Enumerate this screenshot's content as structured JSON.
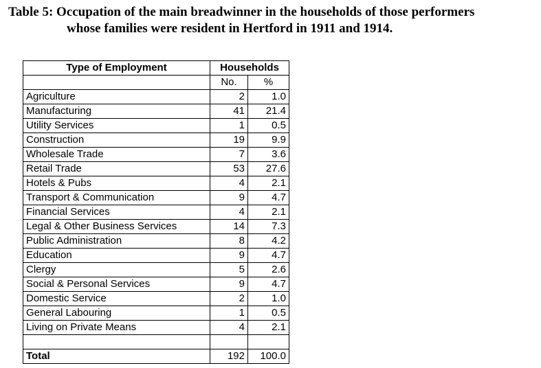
{
  "caption": {
    "line1": "Table 5:  Occupation of the main breadwinner  in the households  of those performers",
    "line2": "whose families were resident in Hertford in 1911 and 1914."
  },
  "table": {
    "header": {
      "type": "Type of Employment",
      "households": "Households",
      "no": "No.",
      "pct": "%"
    },
    "rows": [
      {
        "type": "Agriculture",
        "no": "2",
        "pct": "1.0"
      },
      {
        "type": "Manufacturing",
        "no": "41",
        "pct": "21.4"
      },
      {
        "type": "Utility Services",
        "no": "1",
        "pct": "0.5"
      },
      {
        "type": "Construction",
        "no": "19",
        "pct": "9.9"
      },
      {
        "type": "Wholesale  Trade",
        "no": "7",
        "pct": "3.6"
      },
      {
        "type": "Retail Trade",
        "no": "53",
        "pct": "27.6"
      },
      {
        "type": "Hotels & Pubs",
        "no": "4",
        "pct": "2.1"
      },
      {
        "type": "Transport  & Communication",
        "no": "9",
        "pct": "4.7"
      },
      {
        "type": "Financial Services",
        "no": "4",
        "pct": "2.1"
      },
      {
        "type": "Legal & Other Business Services",
        "no": "14",
        "pct": "7.3"
      },
      {
        "type": "Public Administration",
        "no": "8",
        "pct": "4.2"
      },
      {
        "type": "Education",
        "no": "9",
        "pct": "4.7"
      },
      {
        "type": "Clergy",
        "no": "5",
        "pct": "2.6"
      },
      {
        "type": "Social & Personal Services",
        "no": "9",
        "pct": "4.7"
      },
      {
        "type": "Domestic Service",
        "no": "2",
        "pct": "1.0"
      },
      {
        "type": "General Labouring",
        "no": "1",
        "pct": "0.5"
      },
      {
        "type": "Living on Private Means",
        "no": "4",
        "pct": "2.1"
      }
    ],
    "total": {
      "label": "Total",
      "no": "192",
      "pct": "100.0"
    }
  }
}
